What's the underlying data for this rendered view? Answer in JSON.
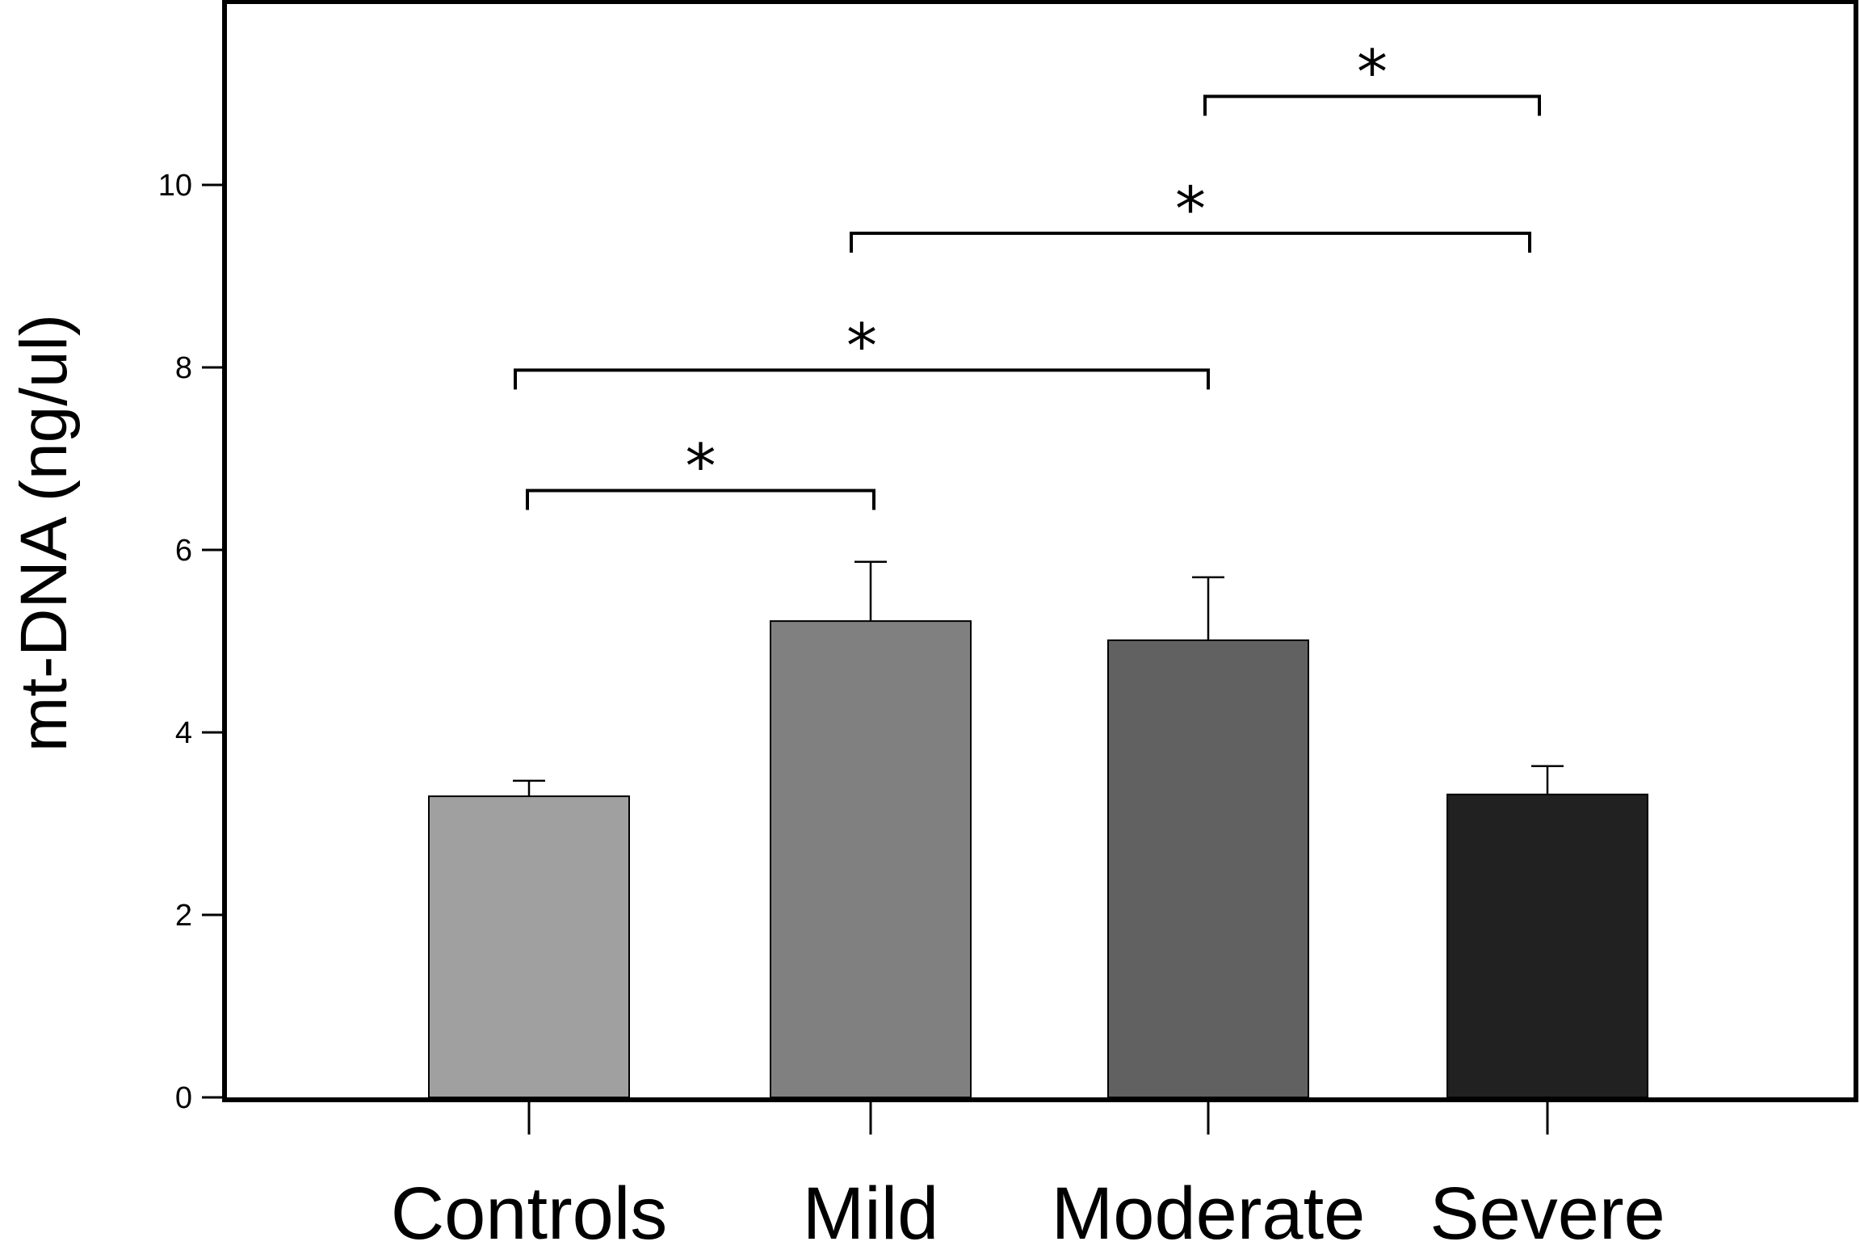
{
  "chart_data": {
    "type": "bar",
    "title": "",
    "xlabel": "",
    "ylabel": "mt-DNA (ng/ul)",
    "ylim": [
      0,
      12
    ],
    "yticks": [
      0,
      2,
      4,
      6,
      8,
      10
    ],
    "ytick_labels": [
      "0",
      "2",
      "4",
      "6",
      "8",
      "10"
    ],
    "grid": false,
    "categories": [
      "Controls",
      "Mild",
      "Moderate",
      "Severe"
    ],
    "values": [
      3.3,
      5.22,
      5.01,
      3.32
    ],
    "errors": [
      0.17,
      0.65,
      0.69,
      0.31
    ],
    "colors": [
      "#a0a0a0",
      "#808080",
      "#616161",
      "#212121"
    ],
    "significance": [
      {
        "from": 0,
        "to": 1,
        "label": "*",
        "y": 6.65
      },
      {
        "from": 0,
        "to": 2,
        "label": "*",
        "y": 7.97
      },
      {
        "from": 1,
        "to": 3,
        "label": "*",
        "y": 9.47
      },
      {
        "from": 2,
        "to": 3,
        "label": "*",
        "y": 10.97
      }
    ]
  }
}
